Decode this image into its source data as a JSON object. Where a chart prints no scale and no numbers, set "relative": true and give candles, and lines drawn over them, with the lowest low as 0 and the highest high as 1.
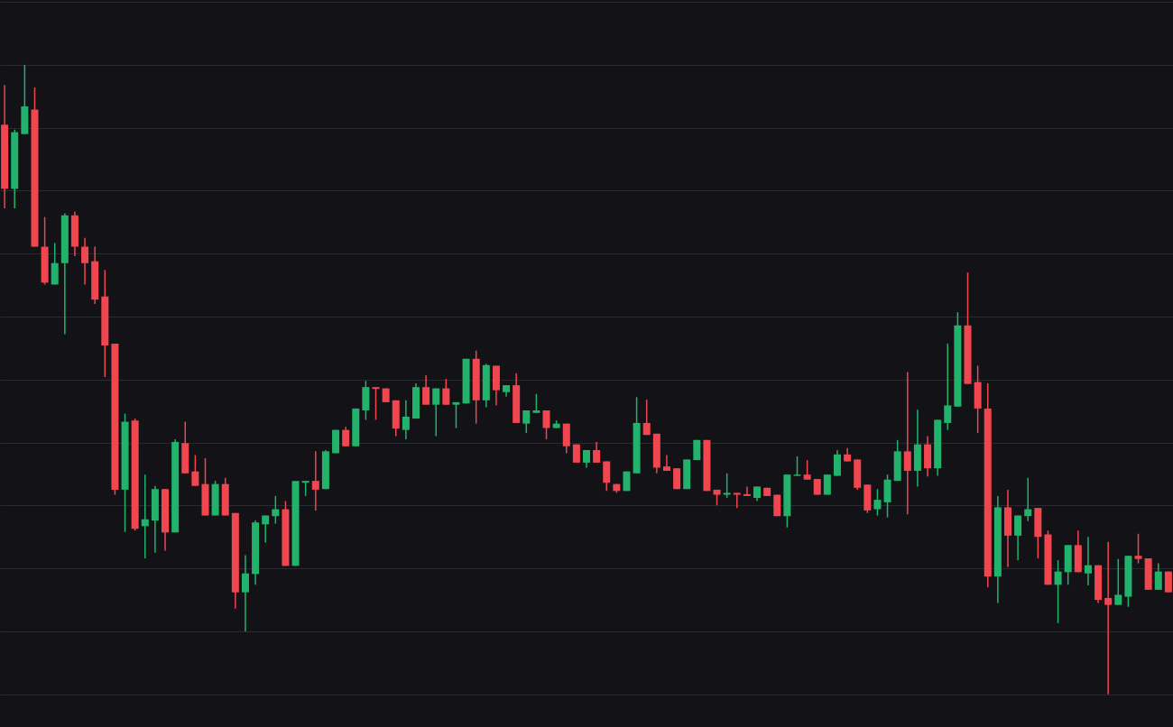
{
  "chart_data": {
    "type": "candlestick",
    "relative": true,
    "grid": true,
    "categories": [
      null,
      null,
      null,
      null,
      null,
      null,
      null,
      null,
      null,
      null,
      null,
      null,
      null,
      null,
      null,
      null,
      null,
      null,
      null,
      null,
      null,
      null,
      null,
      null,
      null,
      null,
      null,
      null,
      null,
      null,
      null,
      null,
      null,
      null,
      null,
      null,
      null,
      null,
      null,
      null,
      null,
      null,
      null,
      null,
      null,
      null,
      null,
      null,
      null,
      null,
      null,
      null,
      null,
      null,
      null,
      null,
      null,
      null,
      null,
      null,
      null,
      null,
      null,
      null,
      null,
      null,
      null,
      null,
      null,
      null,
      null,
      null,
      null,
      null,
      null,
      null,
      null,
      null,
      null,
      null,
      null,
      null,
      null,
      null,
      null,
      null,
      null,
      null,
      null,
      null,
      null,
      null,
      null,
      null,
      null,
      null,
      null,
      null,
      null,
      null,
      null,
      null,
      null,
      null,
      null,
      null,
      null,
      null,
      null,
      null,
      null,
      null,
      null,
      null,
      null,
      null,
      null
    ],
    "ohlc": [
      [
        0.905,
        0.968,
        0.772,
        0.803
      ],
      [
        0.803,
        0.897,
        0.772,
        0.893
      ],
      [
        0.89,
        1.0,
        0.89,
        0.934
      ],
      [
        0.929,
        0.964,
        0.711,
        0.711
      ],
      [
        0.711,
        0.758,
        0.651,
        0.654
      ],
      [
        0.651,
        0.717,
        0.651,
        0.685
      ],
      [
        0.685,
        0.764,
        0.572,
        0.761
      ],
      [
        0.761,
        0.767,
        0.696,
        0.711
      ],
      [
        0.711,
        0.725,
        0.651,
        0.685
      ],
      [
        0.688,
        0.711,
        0.62,
        0.627
      ],
      [
        0.632,
        0.674,
        0.504,
        0.554
      ],
      [
        0.557,
        0.557,
        0.317,
        0.325
      ],
      [
        0.325,
        0.446,
        0.258,
        0.433
      ],
      [
        0.435,
        0.438,
        0.26,
        0.263
      ],
      [
        0.267,
        0.349,
        0.216,
        0.278
      ],
      [
        0.276,
        0.331,
        0.225,
        0.326
      ],
      [
        0.326,
        0.326,
        0.228,
        0.257
      ],
      [
        0.257,
        0.405,
        0.257,
        0.401
      ],
      [
        0.399,
        0.433,
        0.351,
        0.351
      ],
      [
        0.354,
        0.38,
        0.331,
        0.331
      ],
      [
        0.334,
        0.375,
        0.284,
        0.284
      ],
      [
        0.284,
        0.339,
        0.284,
        0.334
      ],
      [
        0.334,
        0.344,
        0.284,
        0.284
      ],
      [
        0.288,
        0.288,
        0.136,
        0.162
      ],
      [
        0.162,
        0.221,
        0.1,
        0.192
      ],
      [
        0.191,
        0.276,
        0.174,
        0.273
      ],
      [
        0.27,
        0.284,
        0.241,
        0.284
      ],
      [
        0.283,
        0.315,
        0.271,
        0.294
      ],
      [
        0.294,
        0.307,
        0.204,
        0.204
      ],
      [
        0.204,
        0.339,
        0.204,
        0.339
      ],
      [
        0.336,
        0.339,
        0.315,
        0.339
      ],
      [
        0.339,
        0.386,
        0.292,
        0.325
      ],
      [
        0.326,
        0.388,
        0.326,
        0.386
      ],
      [
        0.383,
        0.42,
        0.383,
        0.42
      ],
      [
        0.42,
        0.425,
        0.394,
        0.394
      ],
      [
        0.394,
        0.454,
        0.394,
        0.454
      ],
      [
        0.451,
        0.498,
        0.436,
        0.488
      ],
      [
        0.488,
        0.488,
        0.436,
        0.485
      ],
      [
        0.486,
        0.486,
        0.464,
        0.464
      ],
      [
        0.467,
        0.467,
        0.41,
        0.422
      ],
      [
        0.42,
        0.467,
        0.405,
        0.441
      ],
      [
        0.438,
        0.494,
        0.438,
        0.488
      ],
      [
        0.488,
        0.507,
        0.46,
        0.46
      ],
      [
        0.46,
        0.486,
        0.41,
        0.486
      ],
      [
        0.486,
        0.501,
        0.46,
        0.46
      ],
      [
        0.46,
        0.464,
        0.423,
        0.464
      ],
      [
        0.462,
        0.533,
        0.462,
        0.533
      ],
      [
        0.533,
        0.546,
        0.43,
        0.467
      ],
      [
        0.467,
        0.525,
        0.456,
        0.523
      ],
      [
        0.522,
        0.522,
        0.459,
        0.483
      ],
      [
        0.48,
        0.491,
        0.473,
        0.491
      ],
      [
        0.491,
        0.51,
        0.431,
        0.431
      ],
      [
        0.43,
        0.451,
        0.415,
        0.451
      ],
      [
        0.447,
        0.477,
        0.447,
        0.451
      ],
      [
        0.451,
        0.451,
        0.405,
        0.423
      ],
      [
        0.423,
        0.435,
        0.423,
        0.43
      ],
      [
        0.43,
        0.43,
        0.383,
        0.394
      ],
      [
        0.397,
        0.397,
        0.368,
        0.368
      ],
      [
        0.368,
        0.388,
        0.36,
        0.388
      ],
      [
        0.388,
        0.401,
        0.368,
        0.368
      ],
      [
        0.37,
        0.37,
        0.323,
        0.336
      ],
      [
        0.334,
        0.334,
        0.32,
        0.323
      ],
      [
        0.323,
        0.354,
        0.323,
        0.354
      ],
      [
        0.351,
        0.472,
        0.351,
        0.431
      ],
      [
        0.431,
        0.468,
        0.412,
        0.412
      ],
      [
        0.414,
        0.414,
        0.351,
        0.36
      ],
      [
        0.362,
        0.38,
        0.355,
        0.355
      ],
      [
        0.359,
        0.359,
        0.326,
        0.326
      ],
      [
        0.326,
        0.373,
        0.326,
        0.373
      ],
      [
        0.372,
        0.404,
        0.372,
        0.404
      ],
      [
        0.404,
        0.404,
        0.323,
        0.323
      ],
      [
        0.325,
        0.325,
        0.3,
        0.317
      ],
      [
        0.317,
        0.351,
        0.312,
        0.32
      ],
      [
        0.32,
        0.32,
        0.296,
        0.317
      ],
      [
        0.318,
        0.33,
        0.315,
        0.315
      ],
      [
        0.312,
        0.33,
        0.307,
        0.33
      ],
      [
        0.328,
        0.328,
        0.315,
        0.315
      ],
      [
        0.317,
        0.317,
        0.283,
        0.283
      ],
      [
        0.283,
        0.349,
        0.265,
        0.349
      ],
      [
        0.347,
        0.378,
        0.347,
        0.349
      ],
      [
        0.349,
        0.372,
        0.341,
        0.341
      ],
      [
        0.342,
        0.342,
        0.317,
        0.317
      ],
      [
        0.317,
        0.349,
        0.317,
        0.349
      ],
      [
        0.347,
        0.388,
        0.347,
        0.381
      ],
      [
        0.381,
        0.391,
        0.37,
        0.37
      ],
      [
        0.373,
        0.373,
        0.325,
        0.328
      ],
      [
        0.333,
        0.333,
        0.288,
        0.292
      ],
      [
        0.294,
        0.326,
        0.284,
        0.309
      ],
      [
        0.305,
        0.349,
        0.281,
        0.341
      ],
      [
        0.339,
        0.404,
        0.339,
        0.386
      ],
      [
        0.386,
        0.512,
        0.286,
        0.355
      ],
      [
        0.355,
        0.452,
        0.33,
        0.397
      ],
      [
        0.397,
        0.41,
        0.346,
        0.359
      ],
      [
        0.359,
        0.436,
        0.347,
        0.436
      ],
      [
        0.431,
        0.557,
        0.42,
        0.459
      ],
      [
        0.457,
        0.607,
        0.457,
        0.586
      ],
      [
        0.586,
        0.67,
        0.493,
        0.493
      ],
      [
        0.496,
        0.522,
        0.415,
        0.454
      ],
      [
        0.454,
        0.494,
        0.17,
        0.187
      ],
      [
        0.187,
        0.315,
        0.145,
        0.297
      ],
      [
        0.297,
        0.325,
        0.202,
        0.252
      ],
      [
        0.252,
        0.284,
        0.213,
        0.284
      ],
      [
        0.283,
        0.344,
        0.275,
        0.294
      ],
      [
        0.296,
        0.296,
        0.216,
        0.25
      ],
      [
        0.254,
        0.26,
        0.174,
        0.174
      ],
      [
        0.174,
        0.213,
        0.113,
        0.195
      ],
      [
        0.194,
        0.237,
        0.174,
        0.237
      ],
      [
        0.237,
        0.26,
        0.194,
        0.194
      ],
      [
        0.192,
        0.25,
        0.173,
        0.205
      ],
      [
        0.205,
        0.205,
        0.145,
        0.15
      ],
      [
        0.153,
        0.242,
        0.0,
        0.142
      ],
      [
        0.142,
        0.215,
        0.142,
        0.158
      ],
      [
        0.155,
        0.22,
        0.139,
        0.22
      ],
      [
        0.22,
        0.255,
        0.208,
        0.215
      ],
      [
        0.216,
        0.216,
        0.166,
        0.166
      ],
      [
        0.166,
        0.208,
        0.166,
        0.195
      ],
      [
        0.195,
        0.195,
        0.162,
        0.162
      ]
    ],
    "colors": [
      "#f0464f",
      "#22b26c",
      "#22b26c",
      "#f0464f",
      "#f0464f",
      "#22b26c",
      "#22b26c",
      "#f0464f",
      "#f0464f",
      "#f0464f",
      "#f0464f",
      "#f0464f",
      "#22b26c",
      "#f0464f",
      "#22b26c",
      "#22b26c",
      "#f0464f",
      "#22b26c",
      "#f0464f",
      "#f0464f",
      "#f0464f",
      "#22b26c",
      "#f0464f",
      "#f0464f",
      "#22b26c",
      "#22b26c",
      "#22b26c",
      "#22b26c",
      "#f0464f",
      "#22b26c",
      "#22b26c",
      "#f0464f",
      "#22b26c",
      "#22b26c",
      "#f0464f",
      "#22b26c",
      "#22b26c",
      "#f0464f",
      "#f0464f",
      "#f0464f",
      "#22b26c",
      "#22b26c",
      "#f0464f",
      "#22b26c",
      "#f0464f",
      "#22b26c",
      "#22b26c",
      "#f0464f",
      "#22b26c",
      "#f0464f",
      "#22b26c",
      "#f0464f",
      "#22b26c",
      "#22b26c",
      "#f0464f",
      "#22b26c",
      "#f0464f",
      "#f0464f",
      "#22b26c",
      "#f0464f",
      "#f0464f",
      "#f0464f",
      "#22b26c",
      "#22b26c",
      "#f0464f",
      "#f0464f",
      "#f0464f",
      "#f0464f",
      "#22b26c",
      "#22b26c",
      "#f0464f",
      "#f0464f",
      "#22b26c",
      "#f0464f",
      "#f0464f",
      "#22b26c",
      "#f0464f",
      "#f0464f",
      "#22b26c",
      "#22b26c",
      "#f0464f",
      "#f0464f",
      "#22b26c",
      "#22b26c",
      "#f0464f",
      "#f0464f",
      "#f0464f",
      "#22b26c",
      "#22b26c",
      "#22b26c",
      "#f0464f",
      "#22b26c",
      "#f0464f",
      "#22b26c",
      "#22b26c",
      "#22b26c",
      "#f0464f",
      "#f0464f",
      "#f0464f",
      "#22b26c",
      "#f0464f",
      "#22b26c",
      "#22b26c",
      "#f0464f",
      "#f0464f",
      "#22b26c",
      "#22b26c",
      "#f0464f",
      "#22b26c",
      "#f0464f",
      "#f0464f",
      "#22b26c",
      "#22b26c",
      "#f0464f",
      "#f0464f",
      "#22b26c",
      "#f0464f"
    ]
  }
}
